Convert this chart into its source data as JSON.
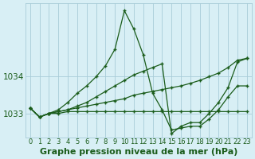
{
  "background_color": "#d8eff5",
  "grid_color": "#a8ccd8",
  "line_color": "#1a5c1a",
  "title": "Graphe pression niveau de la mer (hPa)",
  "xlim": [
    -0.5,
    23.5
  ],
  "ylim": [
    1032.35,
    1036.0
  ],
  "yticks": [
    1033,
    1034
  ],
  "xticks": [
    0,
    1,
    2,
    3,
    4,
    5,
    6,
    7,
    8,
    9,
    10,
    11,
    12,
    13,
    14,
    15,
    16,
    17,
    18,
    19,
    20,
    21,
    22,
    23
  ],
  "series": [
    {
      "x": [
        0,
        1,
        2,
        3,
        4,
        5,
        6,
        7,
        8,
        9,
        10,
        11,
        12,
        13,
        14,
        15,
        16,
        17,
        18,
        19,
        20,
        21,
        22,
        23
      ],
      "y": [
        1033.15,
        1032.9,
        1033.0,
        1033.0,
        1033.05,
        1033.05,
        1033.05,
        1033.05,
        1033.05,
        1033.05,
        1033.05,
        1033.05,
        1033.05,
        1033.05,
        1033.05,
        1033.05,
        1033.05,
        1033.05,
        1033.05,
        1033.05,
        1033.05,
        1033.05,
        1033.05,
        1033.05
      ]
    },
    {
      "x": [
        0,
        1,
        2,
        3,
        4,
        5,
        6,
        7,
        8,
        9,
        10,
        11,
        12,
        13,
        14,
        15,
        16,
        17,
        18,
        19,
        20,
        21,
        22,
        23
      ],
      "y": [
        1033.15,
        1032.9,
        1033.0,
        1033.1,
        1033.3,
        1033.55,
        1033.75,
        1034.0,
        1034.3,
        1034.75,
        1035.8,
        1035.3,
        1034.6,
        1033.55,
        1033.1,
        1032.55,
        1032.6,
        1032.65,
        1032.65,
        1032.85,
        1033.1,
        1033.45,
        1033.75,
        1033.75
      ]
    },
    {
      "x": [
        0,
        1,
        2,
        3,
        4,
        5,
        6,
        7,
        8,
        9,
        10,
        11,
        12,
        13,
        14,
        15,
        16,
        17,
        18,
        19,
        20,
        21,
        22,
        23
      ],
      "y": [
        1033.15,
        1032.9,
        1033.0,
        1033.05,
        1033.1,
        1033.15,
        1033.2,
        1033.25,
        1033.3,
        1033.35,
        1033.4,
        1033.5,
        1033.55,
        1033.6,
        1033.65,
        1033.7,
        1033.75,
        1033.82,
        1033.9,
        1034.0,
        1034.1,
        1034.25,
        1034.45,
        1034.5
      ]
    },
    {
      "x": [
        0,
        1,
        2,
        3,
        4,
        5,
        6,
        7,
        8,
        9,
        10,
        11,
        12,
        13,
        14,
        15,
        16,
        17,
        18,
        19,
        20,
        21,
        22,
        23
      ],
      "y": [
        1033.15,
        1032.9,
        1033.0,
        1033.05,
        1033.1,
        1033.2,
        1033.3,
        1033.45,
        1033.6,
        1033.75,
        1033.9,
        1034.05,
        1034.15,
        1034.25,
        1034.35,
        1032.45,
        1032.65,
        1032.75,
        1032.75,
        1033.0,
        1033.3,
        1033.7,
        1034.4,
        1034.5
      ]
    }
  ],
  "title_fontsize": 8,
  "tick_fontsize": 6
}
